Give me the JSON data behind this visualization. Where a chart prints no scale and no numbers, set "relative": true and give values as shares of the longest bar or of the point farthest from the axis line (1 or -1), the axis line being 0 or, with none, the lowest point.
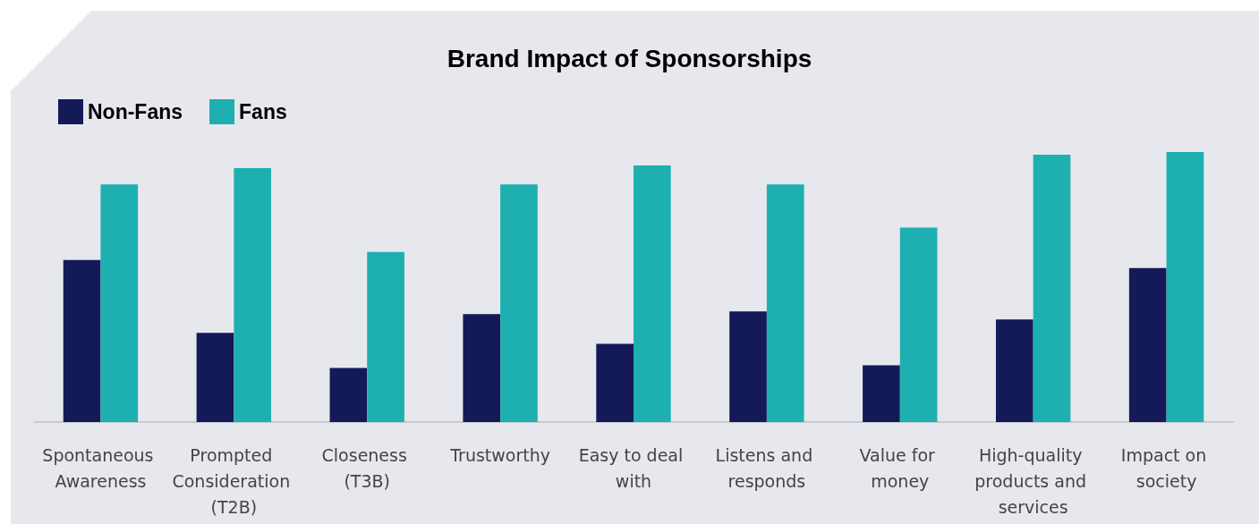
{
  "chart_data": {
    "type": "bar",
    "title": "Brand Impact of Sponsorships",
    "relative": true,
    "legend": "top left",
    "categories": [
      "Spontaneous Awareness",
      "Prompted Consideration (T2B)",
      "Closeness (T3B)",
      "Trustworthy",
      "Easy to deal with",
      "Listens and responds",
      "Value for money",
      "High-quality products and services",
      "Impact on society"
    ],
    "series": [
      {
        "name": "Non-Fans",
        "color": "#141a57",
        "values": [
          0.6,
          0.33,
          0.2,
          0.4,
          0.29,
          0.41,
          0.21,
          0.38,
          0.57
        ]
      },
      {
        "name": "Fans",
        "color": "#1eb0b0",
        "values": [
          0.88,
          0.94,
          0.63,
          0.88,
          0.95,
          0.88,
          0.72,
          0.99,
          1
        ]
      }
    ]
  }
}
